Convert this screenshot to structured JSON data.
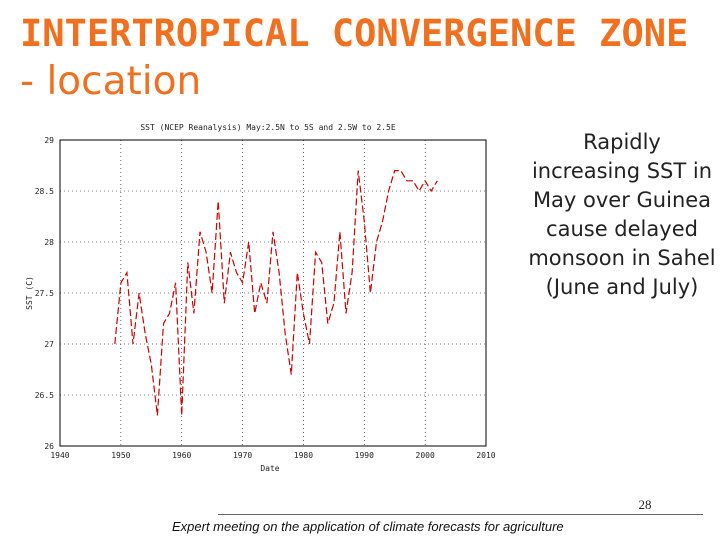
{
  "slide": {
    "title_bold": "INTERTROPICAL CONVERGENCE ZONE",
    "title_rest": "- location",
    "side_text": "Rapidly increasing SST in May over Guinea cause delayed monsoon in Sahel (June and July)",
    "slide_number": "28",
    "footer": "Expert meeting on the application of climate forecasts for agriculture"
  },
  "colors": {
    "title": "#f07020",
    "series": "#cc0000",
    "grid": "#000000"
  },
  "chart_data": {
    "type": "line",
    "title": "SST (NCEP Reanalysis) May:2.5N to  5S and  2.5W to 2.5E",
    "xlabel": "Date",
    "ylabel": "SST (C)",
    "xlim": [
      1940,
      2010
    ],
    "ylim": [
      26,
      29
    ],
    "xticks": [
      1940,
      1950,
      1960,
      1970,
      1980,
      1990,
      2000,
      2010
    ],
    "xtick_labels": [
      "1940",
      "1950",
      "1960",
      "1970",
      "1980",
      "1990",
      "2000",
      "2010"
    ],
    "yticks": [
      26,
      26.5,
      27,
      27.5,
      28,
      28.5,
      29
    ],
    "ytick_labels": [
      "26",
      "26.5",
      "27",
      "27.5",
      "28",
      "28.5",
      "29"
    ],
    "grid": true,
    "line_style": "dashed",
    "series": [
      {
        "x": [
          1949,
          1950,
          1951,
          1952,
          1953,
          1954,
          1955,
          1956,
          1957,
          1958,
          1959,
          1960,
          1961,
          1962,
          1963,
          1964,
          1965,
          1966,
          1967,
          1968,
          1969,
          1970,
          1971,
          1972,
          1973,
          1974,
          1975,
          1976,
          1977,
          1978,
          1979,
          1980,
          1981,
          1982,
          1983,
          1984,
          1985,
          1986,
          1987,
          1988,
          1989,
          1990,
          1991,
          1992,
          1993,
          1994,
          1995,
          1996,
          1997,
          1998,
          1999,
          2000,
          2001,
          2002
        ],
        "y": [
          27.0,
          27.6,
          27.7,
          27.0,
          27.5,
          27.1,
          26.8,
          26.3,
          27.2,
          27.3,
          27.6,
          26.3,
          27.8,
          27.3,
          28.1,
          27.9,
          27.5,
          28.4,
          27.4,
          27.9,
          27.7,
          27.6,
          28.0,
          27.3,
          27.6,
          27.4,
          28.1,
          27.7,
          27.1,
          26.7,
          27.7,
          27.3,
          27.0,
          27.9,
          27.8,
          27.2,
          27.4,
          28.1,
          27.3,
          27.7,
          28.7,
          28.2,
          27.5,
          28.0,
          28.2,
          28.5,
          28.7,
          28.7,
          28.6,
          28.6,
          28.5,
          28.6,
          28.5,
          28.6
        ]
      }
    ]
  }
}
